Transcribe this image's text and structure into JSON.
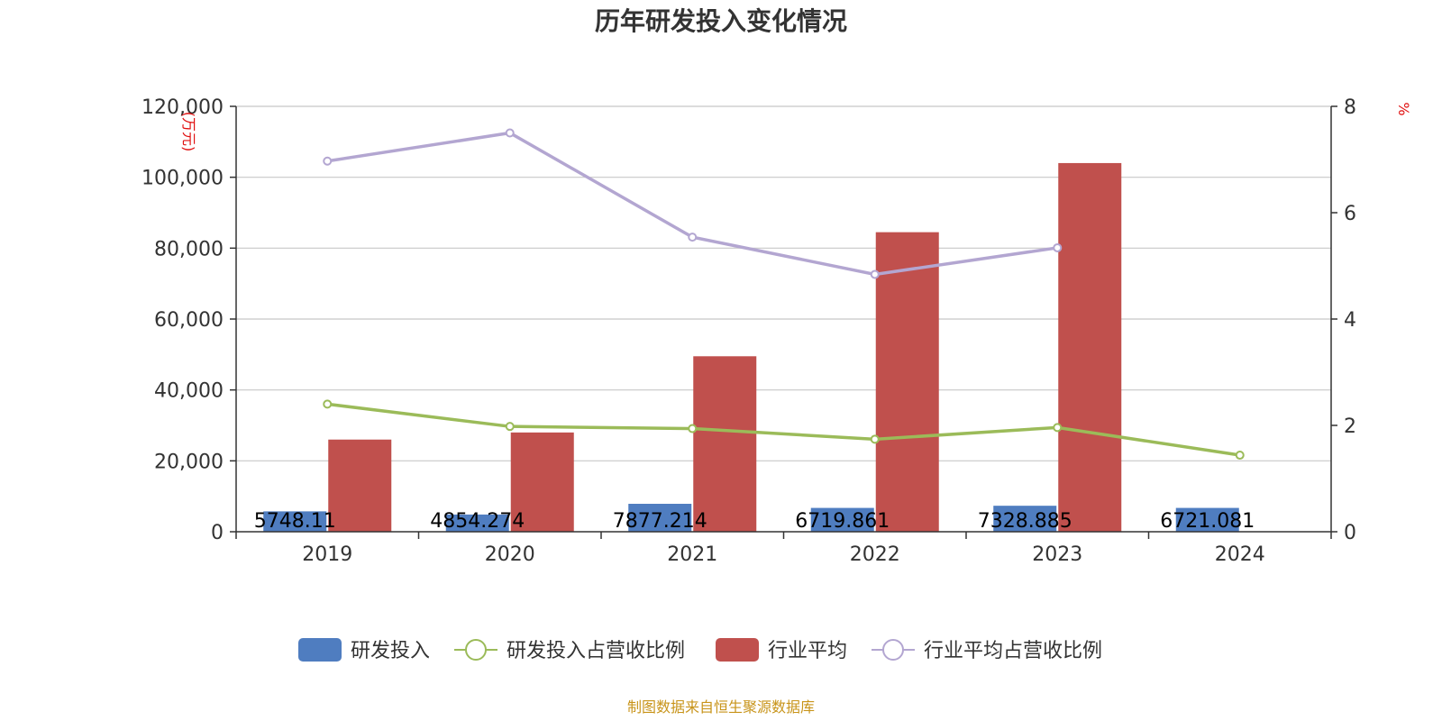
{
  "chart_data": {
    "type": "bar",
    "title": "历年研发投入变化情况",
    "categories": [
      "2019",
      "2020",
      "2021",
      "2022",
      "2023",
      "2024"
    ],
    "y_left": {
      "unit": "(万元)",
      "min": 0,
      "max": 120000,
      "ticks": [
        "0",
        "20,000",
        "40,000",
        "60,000",
        "80,000",
        "100,000",
        "120,000"
      ]
    },
    "y_right": {
      "unit": "%",
      "min": 0,
      "max": 8,
      "ticks": [
        "0",
        "2",
        "4",
        "6",
        "8"
      ]
    },
    "series": [
      {
        "name": "研发投入",
        "type": "bar",
        "axis": "left",
        "color": "#4f7dc0",
        "values": [
          5748.11,
          4854.274,
          7877.214,
          6719.861,
          7328.885,
          6721.081
        ],
        "labels": [
          "5748.11",
          "4854.274",
          "7877.214",
          "6719.861",
          "7328.885",
          "6721.081"
        ]
      },
      {
        "name": "研发投入占营收比例",
        "type": "line",
        "axis": "right",
        "color": "#9bbb59",
        "values": [
          2.4,
          1.98,
          1.94,
          1.74,
          1.96,
          1.44
        ]
      },
      {
        "name": "行业平均",
        "type": "bar",
        "axis": "left",
        "color": "#c0504d",
        "values": [
          26000,
          28000,
          49500,
          84500,
          104000,
          null
        ]
      },
      {
        "name": "行业平均占营收比例",
        "type": "line",
        "axis": "right",
        "color": "#b3a6d1",
        "values": [
          6.97,
          7.5,
          5.54,
          4.84,
          5.34,
          null
        ]
      }
    ],
    "legend_position": "bottom",
    "grid": true
  },
  "source": "制图数据来自恒生聚源数据库"
}
